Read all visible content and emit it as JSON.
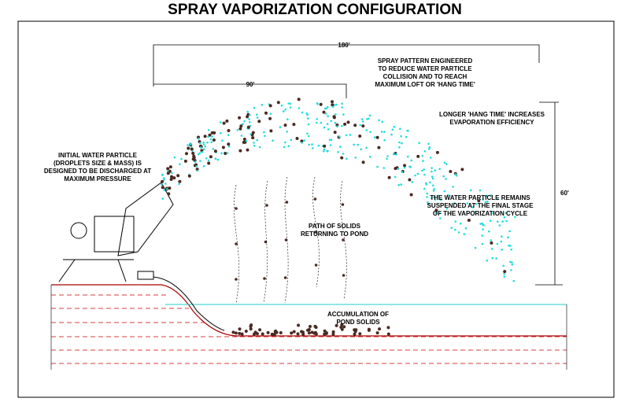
{
  "title": "SPRAY VAPORIZATION CONFIGURATION",
  "dimensions": {
    "horizontal_long": "180'",
    "horizontal_short": "90'",
    "vertical": "60'"
  },
  "annotations": {
    "spray_pattern": [
      "SPRAY PATTERN ENGINEERED",
      "TO REDUCE WATER PARTICLE",
      "COLLISION AND TO REACH",
      "MAXIMUM LOFT OR 'HANG TIME'"
    ],
    "hang_time": [
      "LONGER 'HANG TIME' INCREASES",
      "EVAPORATION EFFICIENCY"
    ],
    "initial_particle": [
      "INITIAL WATER PARTICLE",
      "(DROPLETS SIZE & MASS) IS",
      "DESIGNED TO BE DISCHARGED AT",
      "MAXIMUM PRESSURE"
    ],
    "suspended": [
      "THE WATER PARTICLE REMAINS",
      "SUSPENDED AT THE FINAL STAGE",
      "OF THE VAPORIZATION CYCLE"
    ],
    "path_of_solids": [
      "PATH OF SOLIDS",
      "RETURNING TO POND"
    ],
    "accumulation": [
      "ACCUMULATION OF",
      "POND SOLIDS"
    ]
  }
}
